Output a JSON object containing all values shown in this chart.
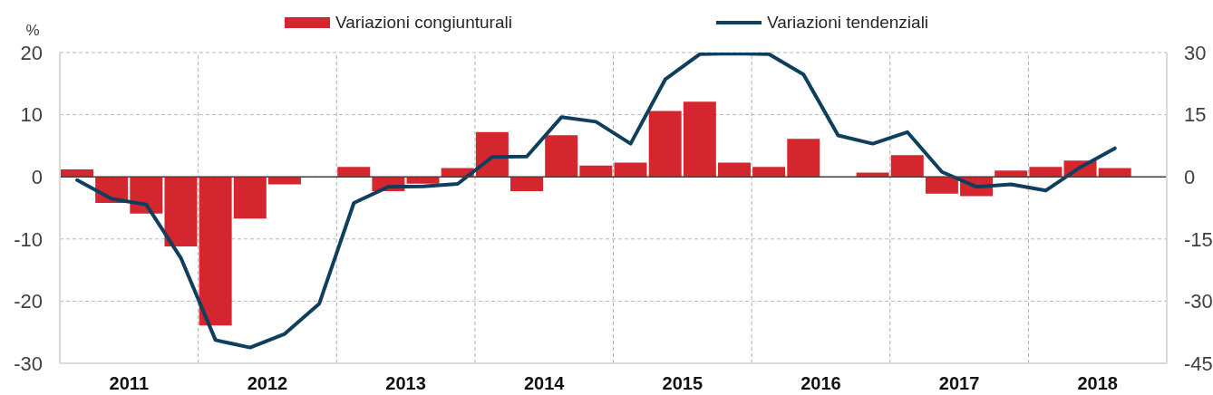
{
  "chart_data": {
    "type": "bar",
    "ylabel": "%",
    "x": [
      2011.125,
      2011.375,
      2011.625,
      2011.875,
      2012.125,
      2012.375,
      2012.625,
      2012.875,
      2013.125,
      2013.375,
      2013.625,
      2013.875,
      2014.125,
      2014.375,
      2014.625,
      2014.875,
      2015.125,
      2015.375,
      2015.625,
      2015.875,
      2016.125,
      2016.375,
      2016.625,
      2016.875,
      2017.125,
      2017.375,
      2017.625,
      2017.875,
      2018.125,
      2018.375,
      2018.625
    ],
    "series": [
      {
        "name": "Variazioni congiunturali",
        "color": "#d4262f",
        "values": [
          1.2,
          -4.2,
          -5.9,
          -11.2,
          -23.9,
          -6.7,
          -1.2,
          0,
          1.6,
          -2.3,
          -1.1,
          1.4,
          7.2,
          -2.3,
          6.7,
          1.8,
          2.3,
          10.6,
          12.1,
          2.3,
          1.6,
          6.1,
          0,
          0.7,
          3.5,
          -2.7,
          -3.1,
          1.0,
          1.6,
          2.6,
          1.4
        ]
      },
      {
        "name": "Variazioni tendenziali",
        "type": "line",
        "axis": "y2",
        "color": "#0e3f5c",
        "values": [
          -0.8,
          -5.3,
          -6.7,
          -19.6,
          -39.4,
          -41.2,
          -37.9,
          -30.6,
          -6.3,
          -2.4,
          -2.3,
          -1.7,
          4.8,
          4.9,
          14.4,
          13.3,
          8.0,
          23.5,
          29.6,
          29.8,
          29.6,
          24.7,
          10.0,
          8.0,
          10.8,
          1.2,
          -2.4,
          -1.8,
          -3.3,
          2.3,
          6.9
        ]
      }
    ],
    "xlim": [
      2011,
      2019
    ],
    "xticks": [
      {
        "value": 2011.5,
        "label": "2011"
      },
      {
        "value": 2012.5,
        "label": "2012"
      },
      {
        "value": 2013.5,
        "label": "2013"
      },
      {
        "value": 2014.5,
        "label": "2014"
      },
      {
        "value": 2015.5,
        "label": "2015"
      },
      {
        "value": 2016.5,
        "label": "2016"
      },
      {
        "value": 2017.5,
        "label": "2017"
      },
      {
        "value": 2018.5,
        "label": "2018"
      }
    ],
    "ylim": [
      -30,
      20
    ],
    "yticks": [
      -30,
      -20,
      -10,
      0,
      10,
      20
    ],
    "y2lim": [
      -45,
      30
    ],
    "y2ticks": [
      -45,
      -30,
      -15,
      0,
      15,
      30
    ],
    "grid": "y",
    "legend": "top",
    "marker": "none",
    "ref_lines": [
      {
        "axis": "x",
        "value": 2012,
        "color": "#b0b0b0",
        "line_style": "dashed"
      },
      {
        "axis": "x",
        "value": 2013,
        "color": "#b0b0b0",
        "line_style": "dashed"
      },
      {
        "axis": "x",
        "value": 2014,
        "color": "#b0b0b0",
        "line_style": "dashed"
      },
      {
        "axis": "x",
        "value": 2015,
        "color": "#b0b0b0",
        "line_style": "dashed"
      },
      {
        "axis": "x",
        "value": 2016,
        "color": "#b0b0b0",
        "line_style": "dashed"
      },
      {
        "axis": "x",
        "value": 2017,
        "color": "#b0b0b0",
        "line_style": "dashed"
      },
      {
        "axis": "x",
        "value": 2018,
        "color": "#b0b0b0",
        "line_style": "dashed"
      },
      {
        "axis": "y",
        "value": 0,
        "color": "#404040",
        "line_style": "solid"
      }
    ]
  }
}
